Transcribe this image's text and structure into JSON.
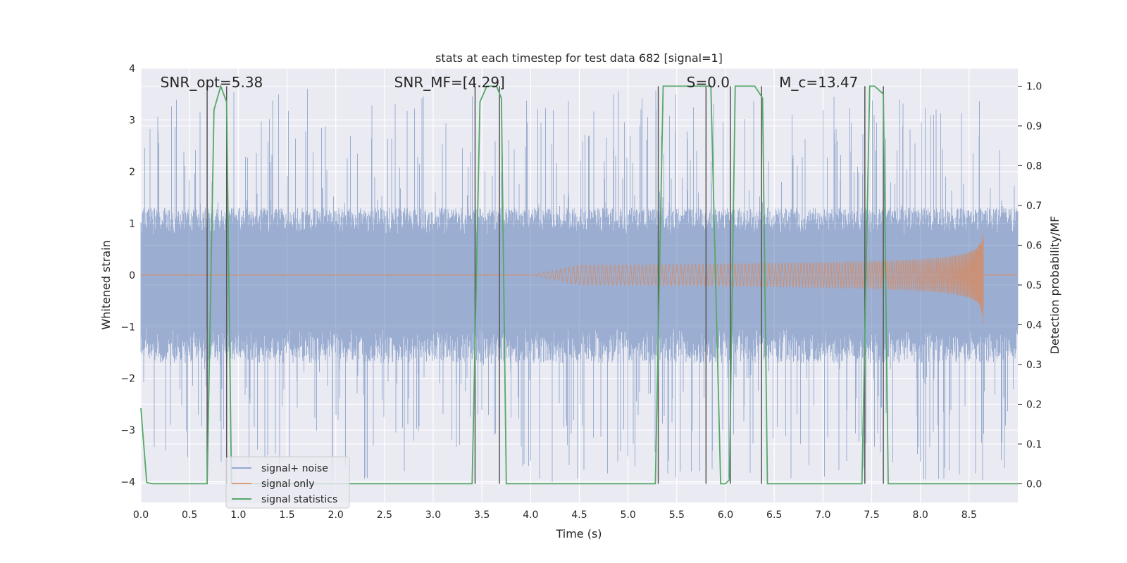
{
  "chart_data": {
    "type": "line",
    "title": "stats at each timestep for test data 682 [signal=1]",
    "xlabel": "Time (s)",
    "ylabel": "Whitened strain",
    "ylabel_right": "Detection probability/MF",
    "xlim": [
      0,
      9.0
    ],
    "ylim": [
      -4.4,
      4.0
    ],
    "ylim_right": [
      -0.047,
      1.045
    ],
    "grid": true,
    "background": "#eaeaf2",
    "legend_position": "lower-left",
    "x_ticks": [
      0.0,
      0.5,
      1.0,
      1.5,
      2.0,
      2.5,
      3.0,
      3.5,
      4.0,
      4.5,
      5.0,
      5.5,
      6.0,
      6.5,
      7.0,
      7.5,
      8.0,
      8.5
    ],
    "x_tick_labels": [
      "0.0",
      "0.5",
      "1.0",
      "1.5",
      "2.0",
      "2.5",
      "3.0",
      "3.5",
      "4.0",
      "4.5",
      "5.0",
      "5.5",
      "6.0",
      "6.5",
      "7.0",
      "7.5",
      "8.0",
      "8.5"
    ],
    "y_ticks": [
      -4,
      -3,
      -2,
      -1,
      0,
      1,
      2,
      3,
      4
    ],
    "y_tick_labels": [
      "−4",
      "−3",
      "−2",
      "−1",
      "0",
      "1",
      "2",
      "3",
      "4"
    ],
    "y2_ticks": [
      0.0,
      0.1,
      0.2,
      0.3,
      0.4,
      0.5,
      0.6,
      0.7,
      0.8,
      0.9,
      1.0
    ],
    "y2_tick_labels": [
      "0.0",
      "0.1",
      "0.2",
      "0.3",
      "0.4",
      "0.5",
      "0.6",
      "0.7",
      "0.8",
      "0.9",
      "1.0"
    ],
    "annotations": [
      {
        "text": "SNR_opt=5.38",
        "x": 0.2
      },
      {
        "text": "SNR_MF=[4.29]",
        "x": 2.6
      },
      {
        "text": "S=0.0",
        "x": 5.6
      },
      {
        "text": "M_c=13.47",
        "x": 6.55
      }
    ],
    "series": [
      {
        "name": "signal+ noise",
        "color": "#4c72b0",
        "axis": "left",
        "style": "noise",
        "amplitude_band": [
          -1.7,
          1.3
        ],
        "peak_range": [
          -4.0,
          3.6
        ]
      },
      {
        "name": "signal only",
        "color": "#dd8452",
        "axis": "left",
        "style": "chirp",
        "x_start": 4.0,
        "x_merger": 8.65,
        "x_end": 9.0,
        "max_amplitude": 1.1
      },
      {
        "name": "signal statistics",
        "color": "#55a868",
        "axis": "right",
        "x": [
          0.0,
          0.06,
          0.12,
          0.4,
          0.68,
          0.75,
          0.82,
          0.88,
          0.93,
          1.0,
          3.2,
          3.4,
          3.48,
          3.55,
          3.65,
          3.7,
          3.75,
          3.8,
          5.1,
          5.28,
          5.36,
          5.5,
          5.6,
          5.78,
          5.85,
          5.95,
          6.0,
          6.04,
          6.1,
          6.3,
          6.38,
          6.43,
          6.48,
          7.0,
          7.4,
          7.48,
          7.53,
          7.62,
          7.67,
          7.72,
          8.0,
          9.0
        ],
        "y": [
          0.19,
          0.003,
          0.0,
          0.0,
          0.0,
          0.94,
          1.0,
          0.96,
          0.0,
          0.0,
          0.0,
          0.0,
          0.96,
          1.0,
          1.0,
          0.97,
          0.0,
          0.0,
          0.0,
          0.0,
          1.0,
          1.0,
          1.0,
          1.0,
          1.0,
          0.0,
          0.0,
          0.01,
          1.0,
          1.0,
          0.97,
          0.0,
          0.0,
          0.0,
          0.0,
          1.0,
          1.0,
          0.98,
          0.0,
          0.0,
          0.0,
          0.0
        ]
      }
    ],
    "vertical_markers": {
      "color": "#555555",
      "x": [
        0.68,
        0.88,
        3.43,
        3.68,
        5.31,
        5.8,
        6.05,
        6.37,
        7.43,
        7.62
      ],
      "y_range_right": [
        0.0,
        1.0
      ]
    }
  }
}
